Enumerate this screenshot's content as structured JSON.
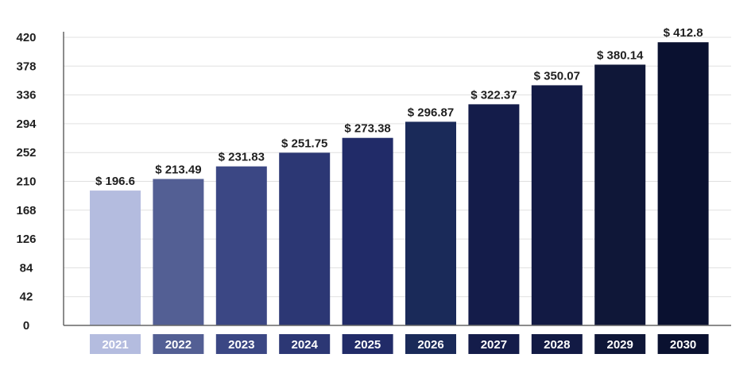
{
  "chart_data": {
    "type": "bar",
    "title": "",
    "xlabel": "",
    "ylabel": "",
    "categories": [
      "2021",
      "2022",
      "2023",
      "2024",
      "2025",
      "2026",
      "2027",
      "2028",
      "2029",
      "2030"
    ],
    "values": [
      196.6,
      213.49,
      231.83,
      251.75,
      273.38,
      296.87,
      322.37,
      350.07,
      380.14,
      412.8
    ],
    "value_labels": [
      "$ 196.6",
      "$ 213.49",
      "$ 231.83",
      "$ 251.75",
      "$ 273.38",
      "$ 296.87",
      "$ 322.37",
      "$ 350.07",
      "$ 380.14",
      "$ 412.8"
    ],
    "yticks": [
      0,
      42,
      84,
      126,
      168,
      210,
      252,
      294,
      336,
      378,
      420
    ],
    "ylim": [
      0,
      420
    ],
    "grid": true,
    "legend": "none",
    "bar_colors": [
      "#b4bcdf",
      "#535f94",
      "#3b4784",
      "#2c3774",
      "#212b68",
      "#1a2a59",
      "#141c4a",
      "#121a44",
      "#0f1738",
      "#0a1130"
    ],
    "axis_color": "#666666",
    "grid_color": "#e0e0e0"
  }
}
